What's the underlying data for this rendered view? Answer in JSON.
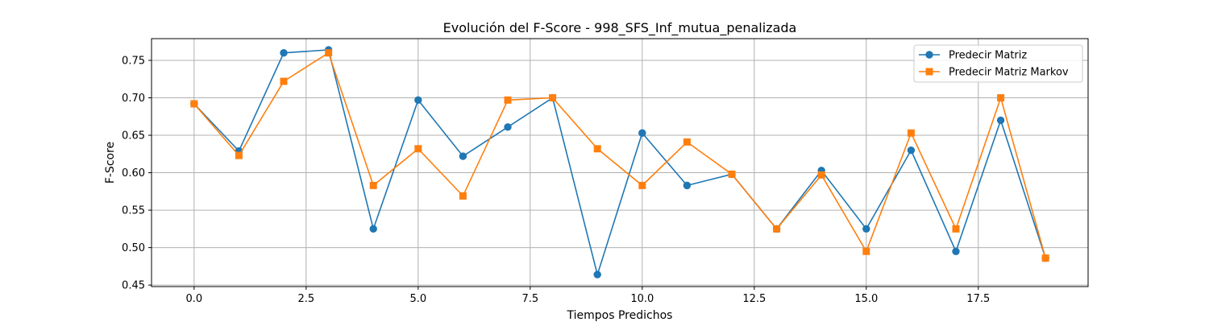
{
  "chart_data": {
    "type": "line",
    "title": "Evolución del F-Score - 998_SFS_Inf_mutua_penalizada",
    "xlabel": "Tiempos Predichos",
    "ylabel": "F-Score",
    "x": [
      0,
      1,
      2,
      3,
      4,
      5,
      6,
      7,
      8,
      9,
      10,
      11,
      12,
      13,
      14,
      15,
      16,
      17,
      18,
      19
    ],
    "xlim": [
      -0.95,
      19.95
    ],
    "ylim": [
      0.448,
      0.779
    ],
    "xticks": [
      0.0,
      2.5,
      5.0,
      7.5,
      10.0,
      12.5,
      15.0,
      17.5
    ],
    "xtick_labels": [
      "0.0",
      "2.5",
      "5.0",
      "7.5",
      "10.0",
      "12.5",
      "15.0",
      "17.5"
    ],
    "yticks": [
      0.45,
      0.5,
      0.55,
      0.6,
      0.65,
      0.7,
      0.75
    ],
    "ytick_labels": [
      "0.45",
      "0.50",
      "0.55",
      "0.60",
      "0.65",
      "0.70",
      "0.75"
    ],
    "grid": true,
    "legend_position": "top-right",
    "series": [
      {
        "name": "Predecir Matriz",
        "color": "#1f77b4",
        "marker": "circle",
        "values": [
          0.692,
          0.629,
          0.76,
          0.764,
          0.525,
          0.697,
          0.622,
          0.661,
          0.7,
          0.464,
          0.653,
          0.583,
          0.598,
          0.525,
          0.603,
          0.525,
          0.63,
          0.495,
          0.67,
          0.486
        ]
      },
      {
        "name": "Predecir Matriz Markov",
        "color": "#ff7f0e",
        "marker": "square",
        "values": [
          0.692,
          0.623,
          0.722,
          0.76,
          0.583,
          0.632,
          0.569,
          0.697,
          0.7,
          0.632,
          0.583,
          0.641,
          0.598,
          0.525,
          0.597,
          0.495,
          0.653,
          0.525,
          0.7,
          0.486
        ]
      }
    ]
  }
}
